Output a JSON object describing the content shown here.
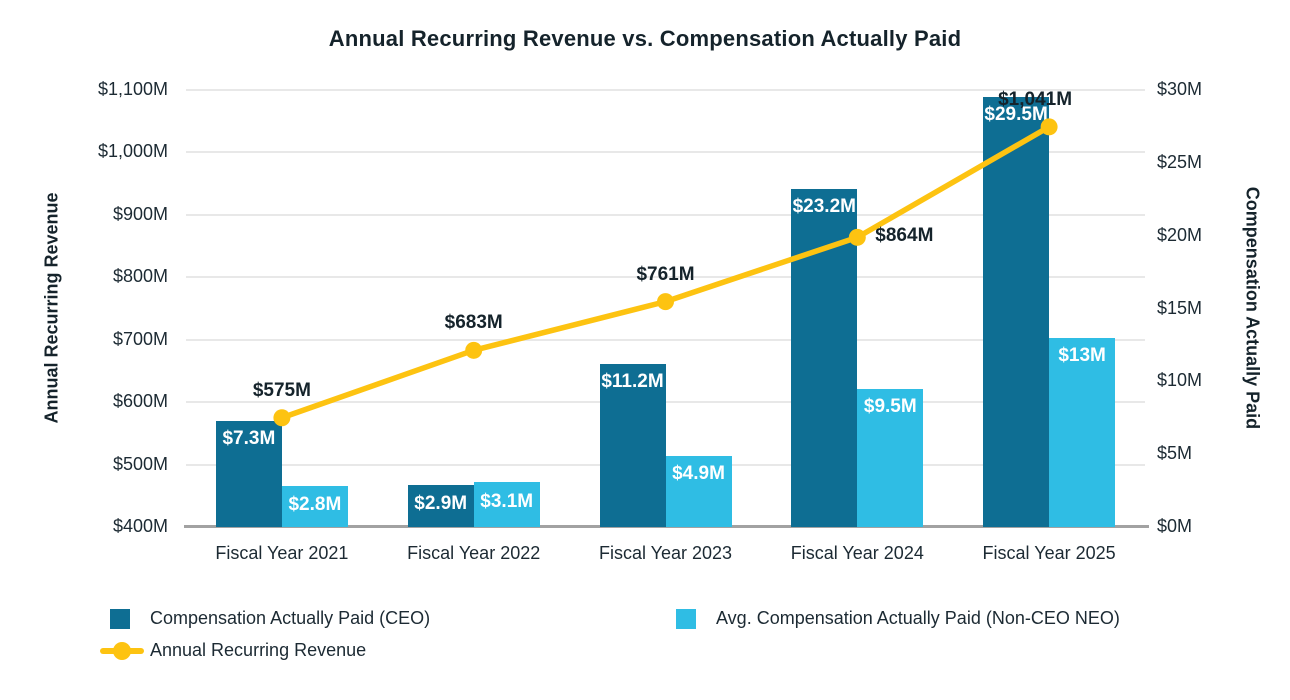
{
  "chart_data": {
    "type": "bar",
    "subtype": "combo-bar-line-dual-axis",
    "title": "Annual Recurring Revenue vs. Compensation Actually Paid",
    "categories": [
      "Fiscal Year 2021",
      "Fiscal Year 2022",
      "Fiscal Year 2023",
      "Fiscal Year 2024",
      "Fiscal Year 2025"
    ],
    "left_axis": {
      "title": "Annual Recurring Revenue",
      "min": 400,
      "max": 1100,
      "step": 100,
      "tick_labels": [
        "$1,100M",
        "$1,000M",
        "$900M",
        "$800M",
        "$700M",
        "$600M",
        "$500M",
        "$400M"
      ]
    },
    "right_axis": {
      "title": "Compensation Actually Paid",
      "min": 0,
      "max": 30,
      "step": 5,
      "tick_labels": [
        "$30M",
        "$25M",
        "$20M",
        "$15M",
        "$10M",
        "$5M",
        "$0M"
      ]
    },
    "bar_series": [
      {
        "name": "Compensation Actually Paid (CEO)",
        "color": "#0e6e93",
        "axis": "right",
        "values": [
          7.3,
          2.9,
          11.2,
          23.2,
          29.5
        ],
        "labels": [
          "$7.3M",
          "$2.9M",
          "$11.2M",
          "$23.2M",
          "$29.5M"
        ]
      },
      {
        "name": "Avg. Compensation Actually Paid (Non-CEO NEO)",
        "color": "#2fbde4",
        "axis": "right",
        "values": [
          2.8,
          3.1,
          4.9,
          9.5,
          13
        ],
        "labels": [
          "$2.8M",
          "$3.1M",
          "$4.9M",
          "$9.5M",
          "$13M"
        ]
      }
    ],
    "line_series": {
      "name": "Annual Recurring Revenue",
      "color": "#fdc311",
      "axis": "left",
      "values": [
        575,
        683,
        761,
        864,
        1041
      ],
      "labels": [
        "$575M",
        "$683M",
        "$761M",
        "$864M",
        "$1,041M"
      ],
      "label_pos": [
        "top",
        "top",
        "top",
        "right",
        "top-left"
      ]
    },
    "grid": true,
    "legend_position": "bottom-left",
    "style": {
      "grid_color": "#e8e8e8",
      "axis_line_color": "#a2a2a2",
      "text_color": "#15232b",
      "bar_label_color": "#ffffff"
    }
  }
}
